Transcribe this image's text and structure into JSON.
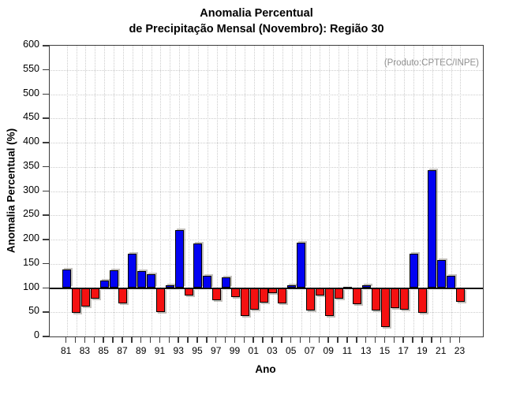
{
  "title": {
    "line1": "Anomalia Percentual",
    "line2": "de Precipitação Mensal (Novembro): Região 30"
  },
  "annotation": "(Produto:CPTEC/INPE)",
  "colors": {
    "positive_bar": "#0202f2",
    "negative_bar": "#f41111",
    "neutral_bar": "#111111",
    "grid": "#cccccc",
    "frame": "#3c3c3c",
    "baseline": "#111111",
    "annotation_text": "#919191",
    "shadow": "rgba(150,144,136,0.55)"
  },
  "chart_data": {
    "type": "bar",
    "title": "Anomalia Percentual de Precipitação Mensal (Novembro): Região 30",
    "xlabel": "Ano",
    "ylabel": "Anomalia Percentual (%)",
    "ylim": [
      0,
      600
    ],
    "ytick_step": 50,
    "baseline": 100,
    "grid": true,
    "x": [
      1981,
      1982,
      1983,
      1984,
      1985,
      1986,
      1987,
      1988,
      1989,
      1990,
      1991,
      1992,
      1993,
      1994,
      1995,
      1996,
      1997,
      1998,
      1999,
      2000,
      2001,
      2002,
      2003,
      2004,
      2005,
      2006,
      2007,
      2008,
      2009,
      2010,
      2011,
      2012,
      2013,
      2014,
      2015,
      2016,
      2017,
      2018,
      2019,
      2020,
      2021,
      2022,
      2023
    ],
    "values": [
      138,
      49,
      62,
      78,
      116,
      136,
      69,
      171,
      135,
      129,
      50,
      105,
      220,
      85,
      192,
      125,
      75,
      122,
      81,
      42,
      55,
      70,
      90,
      68,
      105,
      193,
      54,
      84,
      42,
      78,
      100,
      66,
      106,
      53,
      19,
      58,
      56,
      171,
      48,
      343,
      157,
      125,
      72
    ],
    "xtick_labels": [
      "81",
      "83",
      "85",
      "87",
      "89",
      "91",
      "93",
      "95",
      "97",
      "99",
      "01",
      "03",
      "05",
      "07",
      "09",
      "11",
      "13",
      "15",
      "17",
      "19",
      "21",
      "23"
    ]
  }
}
